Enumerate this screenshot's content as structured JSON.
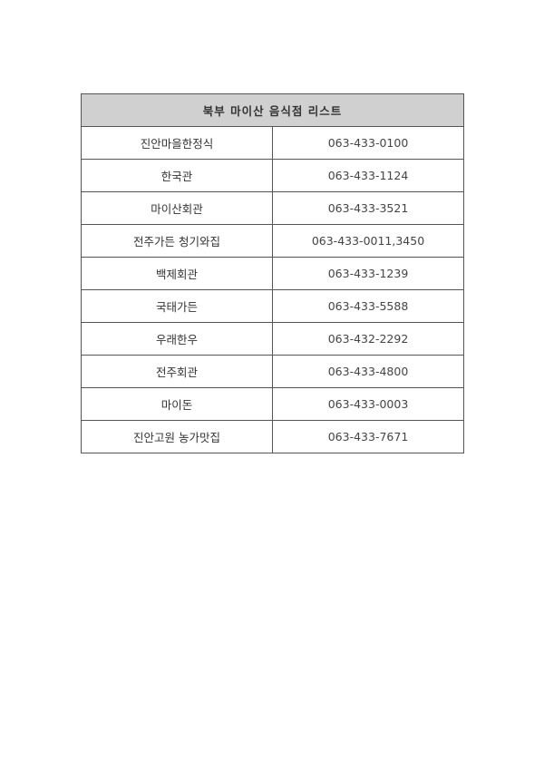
{
  "title": "북부 마이산 음식점 리스트",
  "rows": [
    {
      "name": "진안마을한정식",
      "phone": "063-433-0100"
    },
    {
      "name": "한국관",
      "phone": "063-433-1124"
    },
    {
      "name": "마이산회관",
      "phone": "063-433-3521"
    },
    {
      "name": "전주가든 청기와집",
      "phone": "063-433-0011,3450"
    },
    {
      "name": "백제회관",
      "phone": "063-433-1239"
    },
    {
      "name": "국태가든",
      "phone": "063-433-5588"
    },
    {
      "name": "우래한우",
      "phone": "063-432-2292"
    },
    {
      "name": "전주회관",
      "phone": "063-433-4800"
    },
    {
      "name": "마이돈",
      "phone": "063-433-0003"
    },
    {
      "name": "진안고원 농가맛집",
      "phone": "063-433-7671"
    }
  ]
}
